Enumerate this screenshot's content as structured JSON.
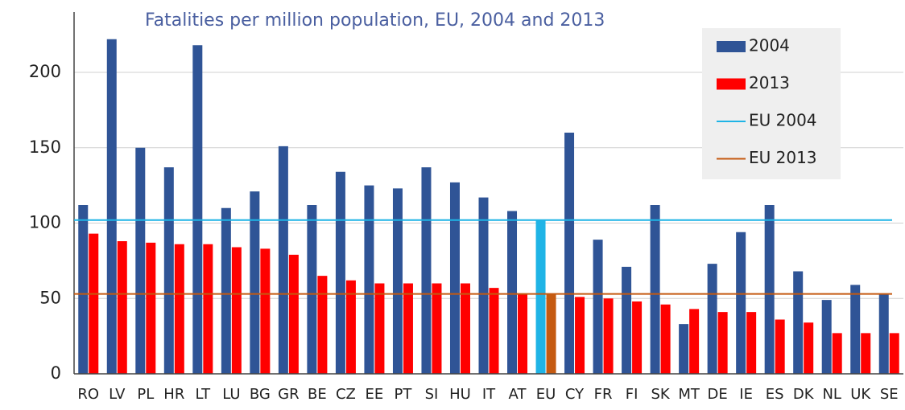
{
  "chart_data": {
    "type": "bar",
    "title": "Fatalities per million population, EU, 2004 and 2013",
    "categories": [
      "RO",
      "LV",
      "PL",
      "HR",
      "LT",
      "LU",
      "BG",
      "GR",
      "BE",
      "CZ",
      "EE",
      "PT",
      "SI",
      "HU",
      "IT",
      "AT",
      "EU",
      "CY",
      "FR",
      "FI",
      "SK",
      "MT",
      "DE",
      "IE",
      "ES",
      "DK",
      "NL",
      "UK",
      "SE"
    ],
    "series": [
      {
        "name": "2004",
        "color": "#2f5496",
        "colors": [
          "#2f5496",
          "#2f5496",
          "#2f5496",
          "#2f5496",
          "#2f5496",
          "#2f5496",
          "#2f5496",
          "#2f5496",
          "#2f5496",
          "#2f5496",
          "#2f5496",
          "#2f5496",
          "#2f5496",
          "#2f5496",
          "#2f5496",
          "#2f5496",
          "#1fb4e6",
          "#2f5496",
          "#2f5496",
          "#2f5496",
          "#2f5496",
          "#2f5496",
          "#2f5496",
          "#2f5496",
          "#2f5496",
          "#2f5496",
          "#2f5496",
          "#2f5496",
          "#2f5496"
        ],
        "values": [
          112,
          222,
          150,
          137,
          218,
          110,
          121,
          151,
          112,
          134,
          125,
          123,
          137,
          127,
          117,
          108,
          102,
          160,
          89,
          71,
          112,
          33,
          73,
          94,
          112,
          68,
          49,
          59,
          53
        ]
      },
      {
        "name": "2013",
        "color": "#ff0000",
        "colors": [
          "#ff0000",
          "#ff0000",
          "#ff0000",
          "#ff0000",
          "#ff0000",
          "#ff0000",
          "#ff0000",
          "#ff0000",
          "#ff0000",
          "#ff0000",
          "#ff0000",
          "#ff0000",
          "#ff0000",
          "#ff0000",
          "#ff0000",
          "#ff0000",
          "#c55a11",
          "#ff0000",
          "#ff0000",
          "#ff0000",
          "#ff0000",
          "#ff0000",
          "#ff0000",
          "#ff0000",
          "#ff0000",
          "#ff0000",
          "#ff0000",
          "#ff0000",
          "#ff0000"
        ],
        "values": [
          93,
          88,
          87,
          86,
          86,
          84,
          83,
          79,
          65,
          62,
          60,
          60,
          60,
          60,
          57,
          53,
          53,
          51,
          50,
          48,
          46,
          43,
          41,
          41,
          36,
          34,
          27,
          27,
          27
        ]
      }
    ],
    "reference_lines": [
      {
        "name": "EU 2004",
        "value": 102,
        "color": "#1fb4e6"
      },
      {
        "name": "EU 2013",
        "value": 53,
        "color": "#c55a11"
      }
    ],
    "ylim": [
      0,
      240
    ],
    "yticks": [
      0,
      50,
      100,
      150,
      200
    ],
    "grid": true,
    "legend": "top-right"
  }
}
